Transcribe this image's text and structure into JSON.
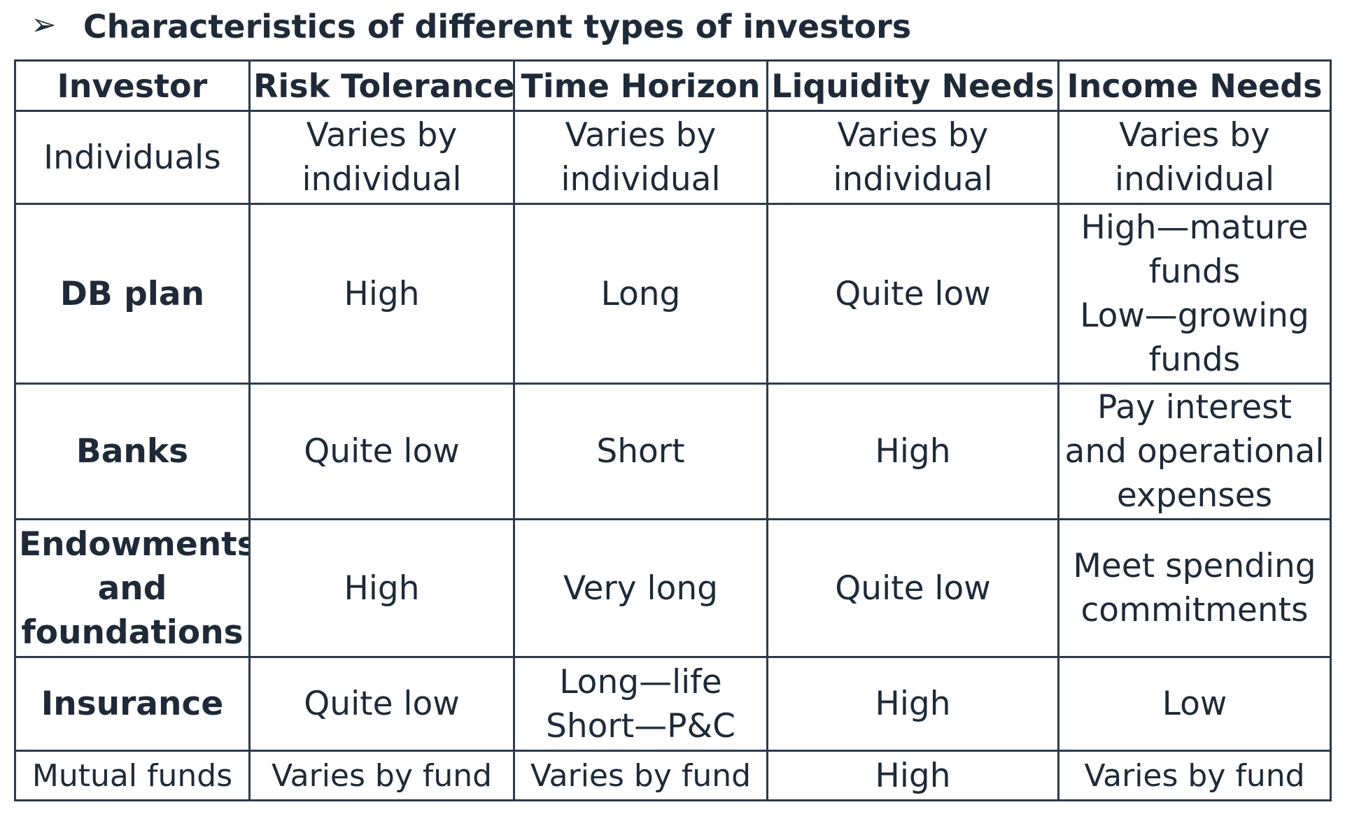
{
  "heading": {
    "bullet": "➢",
    "title": "Characteristics of different types of investors"
  },
  "table": {
    "headers": [
      "Investor",
      "Risk Tolerance",
      "Time Horizon",
      "Liquidity Needs",
      "Income Needs"
    ],
    "rows": [
      {
        "investor": "Individuals",
        "risk_tolerance": "Varies by individual",
        "time_horizon": "Varies by individual",
        "liquidity_needs": "Varies by individual",
        "income_needs": "Varies by individual"
      },
      {
        "investor": "DB plan",
        "risk_tolerance": "High",
        "time_horizon": "Long",
        "liquidity_needs": "Quite low",
        "income_needs_lines": [
          "High—mature funds",
          "Low—growing funds"
        ]
      },
      {
        "investor": "Banks",
        "risk_tolerance": "Quite low",
        "time_horizon": "Short",
        "liquidity_needs": "High",
        "income_needs": "Pay interest and operational expenses"
      },
      {
        "investor": "Endowments and foundations",
        "risk_tolerance": "High",
        "time_horizon": "Very long",
        "liquidity_needs": "Quite low",
        "income_needs": "Meet spending commitments"
      },
      {
        "investor": "Insurance",
        "risk_tolerance": "Quite low",
        "time_horizon_lines": [
          "Long—life",
          "Short—P&C"
        ],
        "liquidity_needs": "High",
        "income_needs": "Low"
      },
      {
        "investor": "Mutual funds",
        "risk_tolerance": "Varies by fund",
        "time_horizon": "Varies by fund",
        "liquidity_needs": "High",
        "income_needs": "Varies by fund"
      }
    ]
  }
}
